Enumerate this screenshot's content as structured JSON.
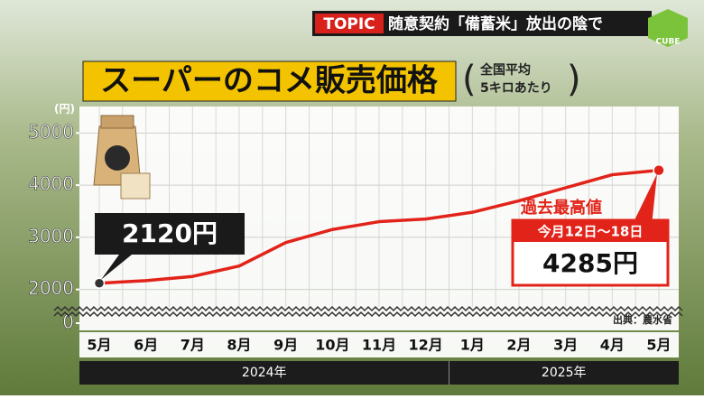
{
  "chart_data": {
    "type": "line",
    "topic_tag": "TOPIC",
    "headline": "随意契約「備蓄米」放出の陰で",
    "logo": "CUBE",
    "title": "スーパーのコメ販売価格",
    "subtitle": [
      "全国平均",
      "5キロあたり"
    ],
    "y_unit": "(円)",
    "categories": [
      "5月",
      "6月",
      "7月",
      "8月",
      "9月",
      "10月",
      "11月",
      "12月",
      "1月",
      "2月",
      "3月",
      "4月",
      "5月"
    ],
    "years": [
      {
        "label": "2024年",
        "from": 0,
        "to": 8
      },
      {
        "label": "2025年",
        "from": 8,
        "to": 12
      }
    ],
    "series": [
      {
        "name": "コメ販売価格",
        "color": "#e2231a",
        "values": [
          2120,
          2170,
          2250,
          2450,
          2900,
          3150,
          3300,
          3350,
          3480,
          3700,
          3950,
          4200,
          4285
        ],
        "value_labels": [
          "2120円",
          null,
          null,
          null,
          null,
          null,
          null,
          null,
          null,
          null,
          null,
          null,
          "4285円"
        ]
      }
    ],
    "ylim": [
      0,
      5300
    ],
    "y_break": [
      0,
      1700
    ],
    "yticks": [
      0,
      2000,
      3000,
      4000,
      5000
    ],
    "grid": true,
    "record_label": "過去最高値",
    "record_period": "今月12日〜18日",
    "source": "出典：農水省"
  }
}
